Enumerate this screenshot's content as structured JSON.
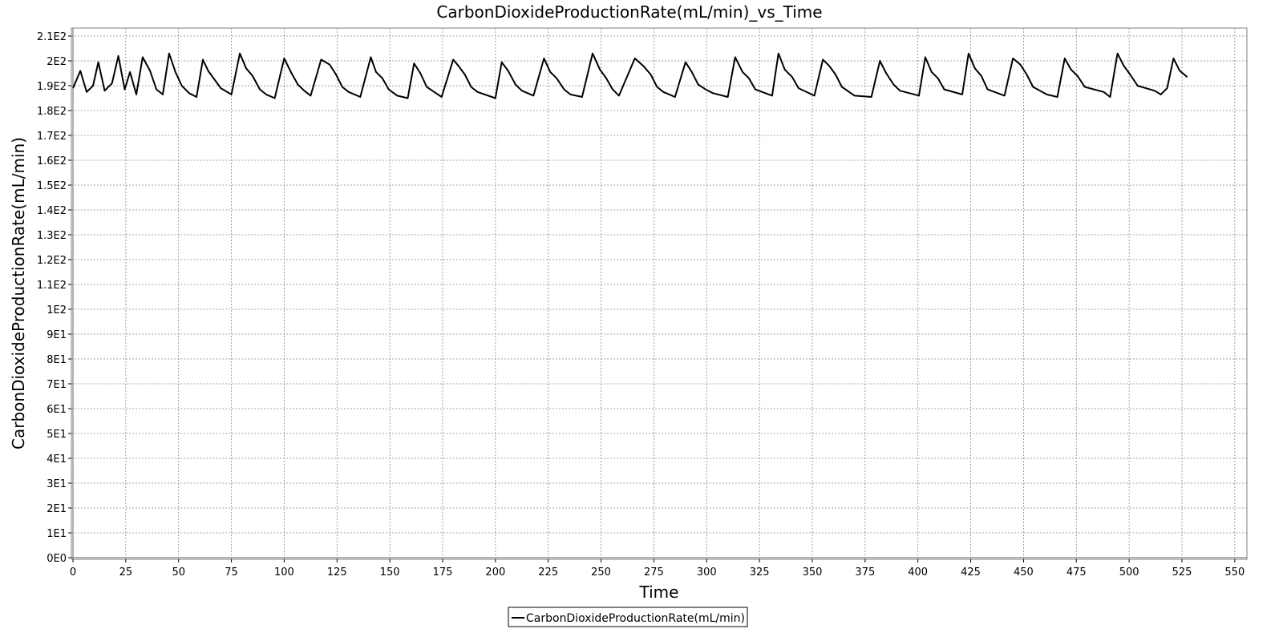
{
  "chart_data": {
    "type": "line",
    "title": "CarbonDioxideProductionRate(mL/min)_vs_Time",
    "xlabel": "Time",
    "ylabel": "CarbonDioxideProductionRate(mL/min)",
    "xlim": [
      0,
      555
    ],
    "ylim": [
      0,
      210
    ],
    "x_ticks": [
      0,
      25,
      50,
      75,
      100,
      125,
      150,
      175,
      200,
      225,
      250,
      275,
      300,
      325,
      350,
      375,
      400,
      425,
      450,
      475,
      500,
      525,
      550
    ],
    "x_tick_labels": [
      "0",
      "25",
      "50",
      "75",
      "100",
      "125",
      "150",
      "175",
      "200",
      "225",
      "250",
      "275",
      "300",
      "325",
      "350",
      "375",
      "400",
      "425",
      "450",
      "475",
      "500",
      "525",
      "550"
    ],
    "y_ticks": [
      0,
      10,
      20,
      30,
      40,
      50,
      60,
      70,
      80,
      90,
      100,
      110,
      120,
      130,
      140,
      150,
      160,
      170,
      180,
      190,
      200,
      210
    ],
    "y_tick_labels": [
      "0E0",
      "1E1",
      "2E1",
      "3E1",
      "4E1",
      "5E1",
      "6E1",
      "7E1",
      "8E1",
      "9E1",
      "1E2",
      "1.1E2",
      "1.2E2",
      "1.3E2",
      "1.4E2",
      "1.5E2",
      "1.6E2",
      "1.7E2",
      "1.8E2",
      "1.9E2",
      "2E2",
      "2.1E2"
    ],
    "grid": true,
    "legend_position": "bottom-center",
    "line_color": "#000000",
    "series": [
      {
        "name": "CarbonDioxideProductionRate(mL/min)",
        "x": [
          0,
          3.5,
          6.5,
          9.5,
          12,
          15,
          18.5,
          21.5,
          24.5,
          27,
          30,
          33,
          36.5,
          39.5,
          42.5,
          45.5,
          48.5,
          51.5,
          55,
          58.5,
          61.5,
          64,
          70,
          75,
          79,
          82,
          85,
          88.5,
          91.5,
          95.5,
          100,
          103.5,
          106.5,
          109.5,
          112.5,
          117.5,
          121.5,
          124.5,
          127.5,
          130.5,
          136,
          141,
          143.5,
          146.5,
          149.5,
          153.5,
          158.5,
          161.5,
          164.5,
          167.5,
          171,
          174.5,
          180,
          182.5,
          185.5,
          188.5,
          191.5,
          200,
          203,
          206,
          209.5,
          212.5,
          218,
          223,
          226,
          229,
          232.5,
          235.5,
          241,
          246,
          249.5,
          252.5,
          255.5,
          258.5,
          266,
          270,
          273.5,
          276.5,
          279.5,
          285,
          290,
          293,
          296,
          299.5,
          303,
          310,
          313.5,
          317,
          320,
          323,
          331,
          334,
          337,
          340.5,
          343.5,
          351,
          355,
          358,
          361,
          364,
          370,
          378,
          382,
          385,
          388.5,
          391.5,
          400.5,
          403.5,
          406.5,
          409.5,
          412.5,
          421,
          424,
          427,
          430,
          433,
          441,
          445,
          448.5,
          451.5,
          454.5,
          461,
          466,
          469.5,
          472.5,
          475.5,
          479,
          488,
          491,
          494.5,
          497.5,
          500.5,
          504,
          512,
          515,
          518,
          521,
          524,
          527.5
        ],
        "y": [
          189,
          196,
          187.5,
          190,
          199.5,
          188,
          191,
          202,
          188.5,
          195.5,
          186.5,
          201.5,
          196,
          188.5,
          186.5,
          203,
          195.5,
          190,
          187,
          185.5,
          200.5,
          196,
          189,
          186.5,
          203,
          197,
          194,
          188.5,
          186.5,
          185,
          201,
          195,
          190.5,
          188,
          186,
          200.5,
          198.5,
          194.5,
          189.5,
          187.5,
          185.5,
          201.5,
          195.5,
          193,
          188.5,
          186,
          185,
          199,
          195,
          189.5,
          187.5,
          185.5,
          200.5,
          198,
          194.5,
          189.5,
          187.5,
          185,
          199.5,
          196,
          190.5,
          188,
          186,
          201,
          195.5,
          193,
          188.5,
          186.5,
          185.5,
          203,
          196.5,
          193,
          188.5,
          186,
          201,
          198,
          194.5,
          189.5,
          187.5,
          185.5,
          199.5,
          195.5,
          190.5,
          188.5,
          187,
          185.5,
          201.5,
          195.5,
          193,
          188.5,
          186,
          203,
          196.5,
          193.5,
          189,
          186,
          200.5,
          198,
          194.5,
          189.5,
          186,
          185.5,
          200,
          195,
          190.5,
          188,
          186,
          201.5,
          195.5,
          193,
          188.5,
          186.5,
          203,
          197,
          194,
          188.5,
          186,
          201,
          198.5,
          194.5,
          189.5,
          186.5,
          185.5,
          201,
          196.5,
          194,
          189.5,
          187.5,
          185.5,
          203,
          198,
          194.5,
          190,
          188,
          186.5,
          189,
          201,
          196,
          193.5
        ]
      }
    ]
  }
}
